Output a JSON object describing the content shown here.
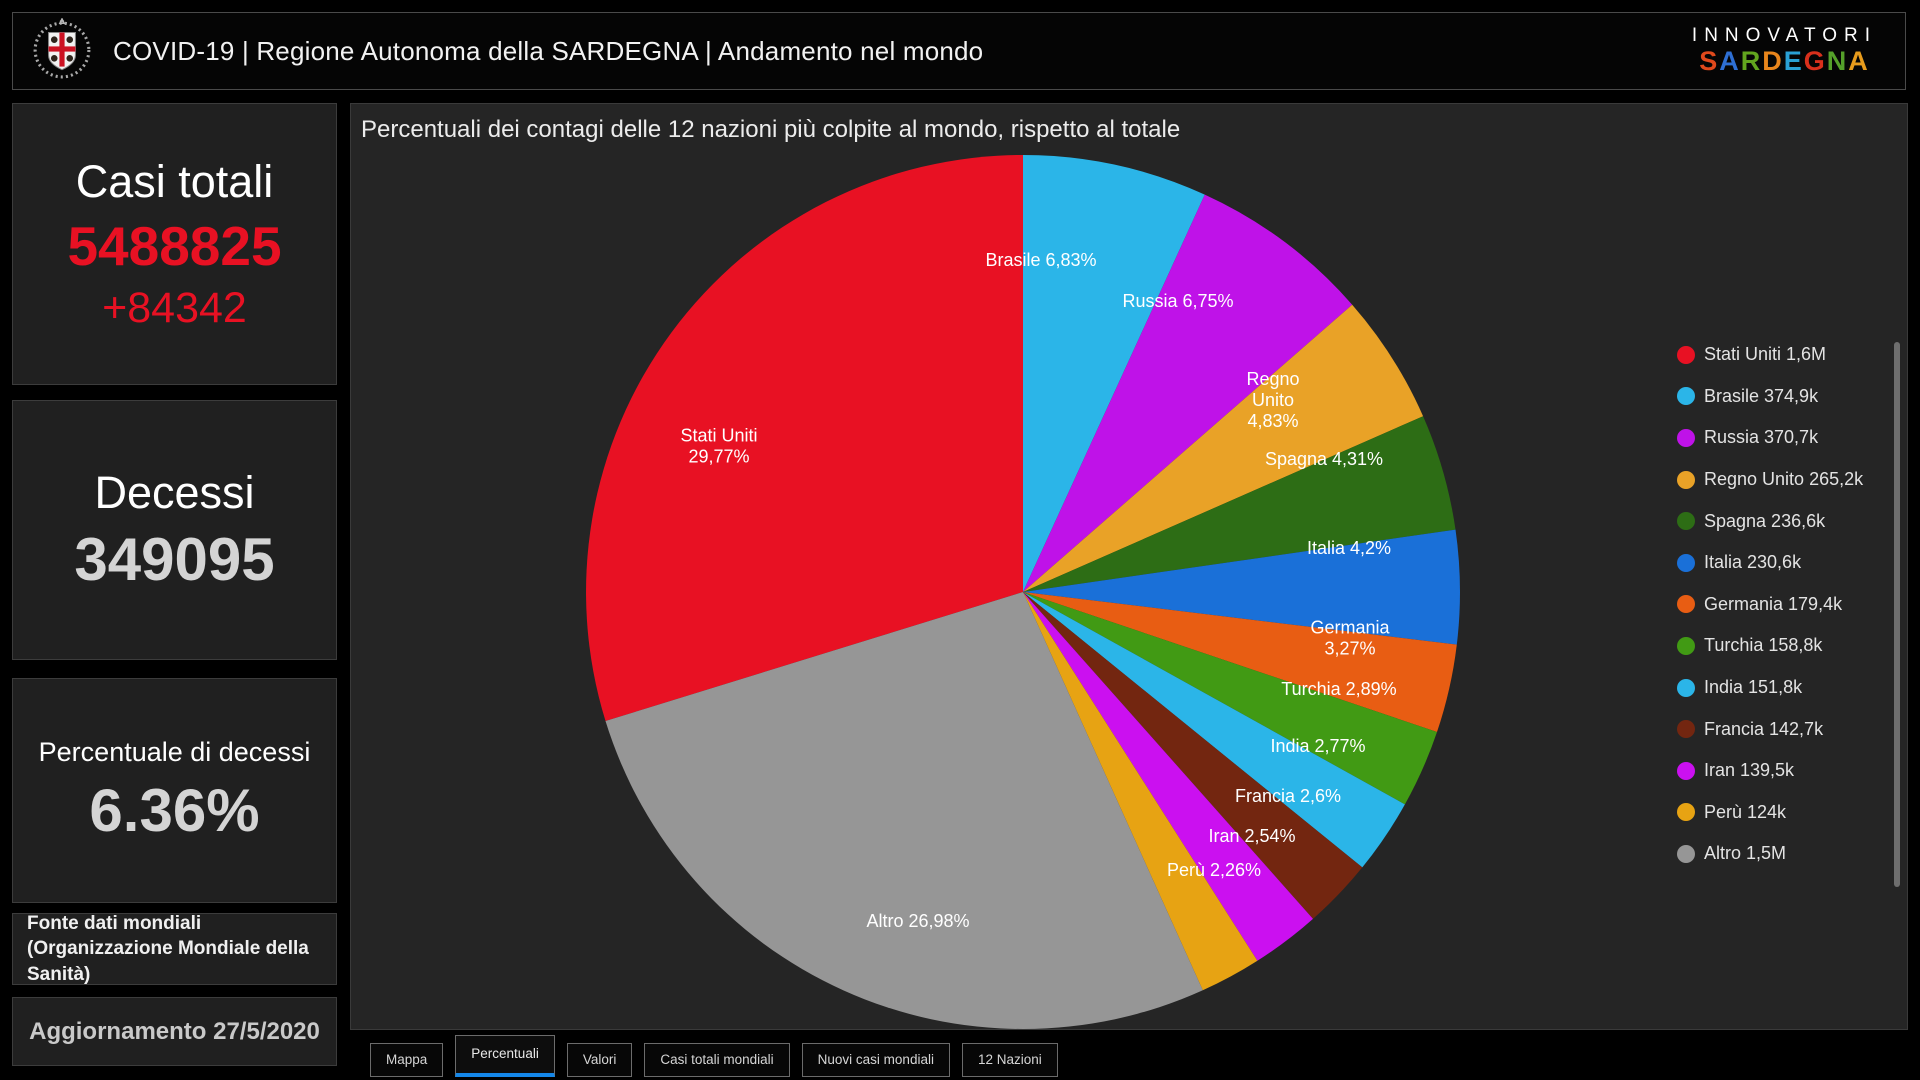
{
  "header": {
    "title": "COVID-19 | Regione Autonoma della SARDEGNA | Andamento nel mondo",
    "logo_name": "sardegna-coat-of-arms",
    "brand": {
      "line1": "INNOVATORI",
      "line2_letters": [
        {
          "ch": "S",
          "color": "#e0491c"
        },
        {
          "ch": "A",
          "color": "#2e6fd4"
        },
        {
          "ch": "R",
          "color": "#62a51e"
        },
        {
          "ch": "D",
          "color": "#e8851c"
        },
        {
          "ch": "E",
          "color": "#2aa0d4"
        },
        {
          "ch": "G",
          "color": "#d8301c"
        },
        {
          "ch": "N",
          "color": "#55a02a"
        },
        {
          "ch": "A",
          "color": "#e89c1c"
        }
      ]
    }
  },
  "sidebar": {
    "cards": [
      {
        "id": "casi-totali",
        "label": "Casi totali",
        "value": "5488825",
        "delta": "+84342",
        "value_color": "#e81123"
      },
      {
        "id": "decessi",
        "label": "Decessi",
        "value": "349095"
      },
      {
        "id": "percentuale-decessi",
        "label": "Percentuale di decessi",
        "value": "6.36%"
      },
      {
        "id": "fonte",
        "text": "Fonte dati mondiali (Organizzazione Mondiale della Sanità)"
      },
      {
        "id": "aggiornamento",
        "text": "Aggiornamento 27/5/2020"
      }
    ]
  },
  "chart_data": {
    "type": "pie",
    "title": "Percentuali dei contagi delle 12 nazioni più colpite al mondo, rispetto al totale",
    "legend_position": "right",
    "start_angle_deg": -107.172,
    "slices": [
      {
        "label": "Stati Uniti",
        "pct": 29.77,
        "pct_label_lines": [
          "Stati Uniti",
          "29,77%"
        ],
        "legend_value": "1,6M",
        "color": "#e81123"
      },
      {
        "label": "Brasile",
        "pct": 6.83,
        "pct_label_lines": [
          "Brasile 6,83%"
        ],
        "legend_value": "374,9k",
        "color": "#2bb5e8"
      },
      {
        "label": "Russia",
        "pct": 6.75,
        "pct_label_lines": [
          "Russia 6,75%"
        ],
        "legend_value": "370,7k",
        "color": "#bf12e8"
      },
      {
        "label": "Regno Unito",
        "pct": 4.83,
        "pct_label_lines": [
          "Regno",
          "Unito",
          "4,83%"
        ],
        "legend_value": "265,2k",
        "color": "#e9a227"
      },
      {
        "label": "Spagna",
        "pct": 4.31,
        "pct_label_lines": [
          "Spagna 4,31%"
        ],
        "legend_value": "236,6k",
        "color": "#2d6d15"
      },
      {
        "label": "Italia",
        "pct": 4.2,
        "pct_label_lines": [
          "Italia 4,2%"
        ],
        "legend_value": "230,6k",
        "color": "#1a70d8"
      },
      {
        "label": "Germania",
        "pct": 3.27,
        "pct_label_lines": [
          "Germania",
          "3,27%"
        ],
        "legend_value": "179,4k",
        "color": "#e85d13"
      },
      {
        "label": "Turchia",
        "pct": 2.89,
        "pct_label_lines": [
          "Turchia 2,89%"
        ],
        "legend_value": "158,8k",
        "color": "#419a14"
      },
      {
        "label": "India",
        "pct": 2.77,
        "pct_label_lines": [
          "India 2,77%"
        ],
        "legend_value": "151,8k",
        "color": "#2bb5e8"
      },
      {
        "label": "Francia",
        "pct": 2.6,
        "pct_label_lines": [
          "Francia 2,6%"
        ],
        "legend_value": "142,7k",
        "color": "#732610"
      },
      {
        "label": "Iran",
        "pct": 2.54,
        "pct_label_lines": [
          "Iran 2,54%"
        ],
        "legend_value": "139,5k",
        "color": "#cb10f0"
      },
      {
        "label": "Perù",
        "pct": 2.26,
        "pct_label_lines": [
          "Perù 2,26%"
        ],
        "legend_value": "124k",
        "color": "#e7a313"
      },
      {
        "label": "Altro",
        "pct": 26.98,
        "pct_label_lines": [
          "Altro 26,98%"
        ],
        "legend_value": "1,5M",
        "color": "#969696"
      }
    ]
  },
  "tabs": [
    {
      "label": "Mappa",
      "active": false
    },
    {
      "label": "Percentuali",
      "active": true
    },
    {
      "label": "Valori",
      "active": false
    },
    {
      "label": "Casi totali mondiali",
      "active": false
    },
    {
      "label": "Nuovi casi mondiali",
      "active": false
    },
    {
      "label": "12 Nazioni",
      "active": false
    }
  ]
}
